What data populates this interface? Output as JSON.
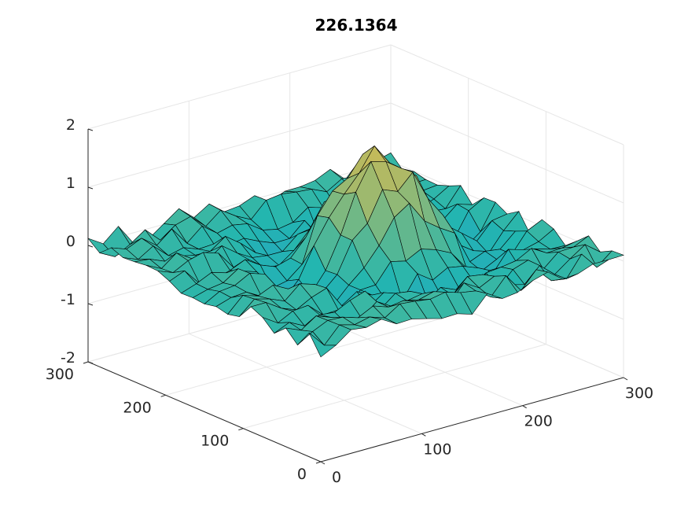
{
  "chart_data": {
    "type": "surface",
    "title": "226.1364",
    "x_ticks": [
      0,
      100,
      200,
      300
    ],
    "y_ticks": [
      0,
      100,
      200,
      300
    ],
    "z_ticks": [
      -2,
      -1,
      0,
      1,
      2
    ],
    "x_tick_labels": [
      "0",
      "100",
      "200",
      "300"
    ],
    "y_tick_labels": [
      "0",
      "100",
      "200",
      "300"
    ],
    "z_tick_labels": [
      "-2",
      "-1",
      "0",
      "1",
      "2"
    ],
    "xlim": [
      0,
      300
    ],
    "ylim": [
      0,
      300
    ],
    "zlim": [
      -2,
      2
    ],
    "grid": true,
    "colormap": "parula",
    "colors": {
      "low": "#3a7fe6",
      "mid": "#22b6b0",
      "high": "#f9bb3e",
      "edge": "#000000",
      "grid": "#e6e6e6",
      "axis": "#262626"
    },
    "surface": {
      "grid_range": [
        0,
        300
      ],
      "grid_step": 15,
      "peak": {
        "x": 180,
        "y": 160,
        "z": 1.5
      },
      "ring_radius": 80,
      "ring_depth": -0.55,
      "noise_amplitude": 0.2
    }
  }
}
